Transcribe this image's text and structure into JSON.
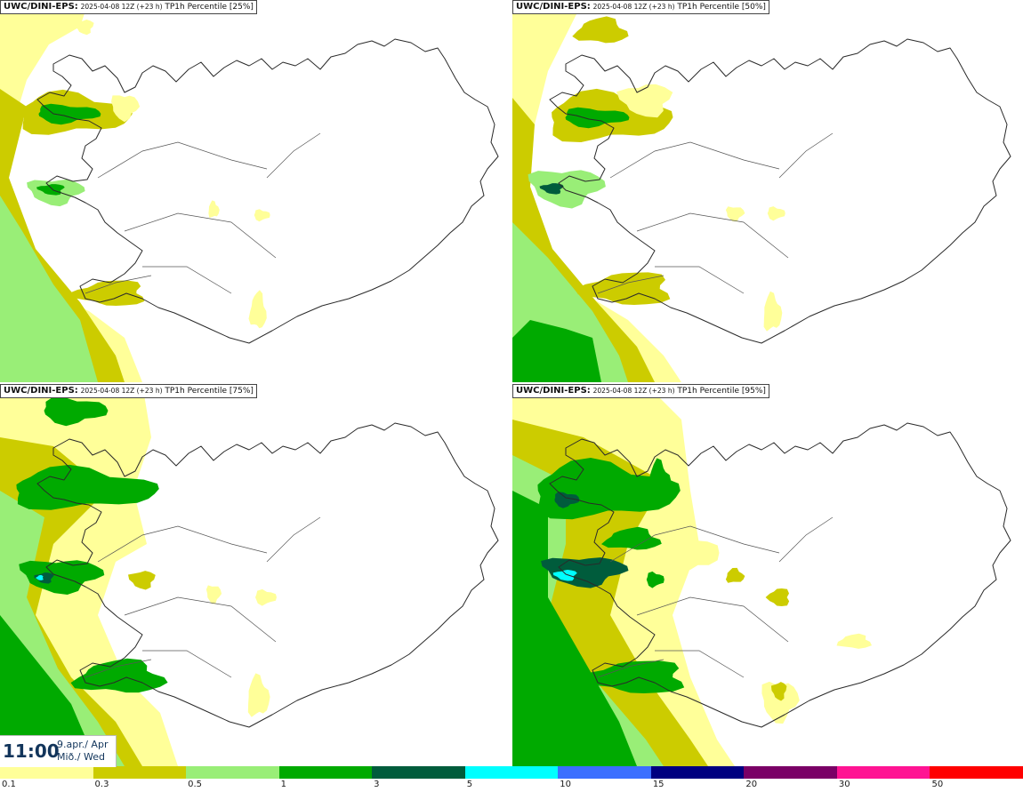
{
  "panels": [
    {
      "model": "UWC/DINI-EPS:",
      "run": "2025-04-08 12Z (+23 h)",
      "param": "TP1h Percentile [25%]"
    },
    {
      "model": "UWC/DINI-EPS:",
      "run": "2025-04-08 12Z (+23 h)",
      "param": "TP1h Percentile [50%]"
    },
    {
      "model": "UWC/DINI-EPS:",
      "run": "2025-04-08 12Z (+23 h)",
      "param": "TP1h Percentile [75%]"
    },
    {
      "model": "UWC/DINI-EPS:",
      "run": "2025-04-08 12Z (+23 h)",
      "param": "TP1h Percentile [95%]"
    }
  ],
  "valid_time": {
    "time": "11:00",
    "date_line1": "9.apr./ Apr",
    "date_line2": "Mið./ Wed"
  },
  "legend": {
    "colors": [
      "#ffff99",
      "#cccc00",
      "#99ee77",
      "#00aa00",
      "#005c3c",
      "#00ffff",
      "#3b6fff",
      "#000080",
      "#7a0066",
      "#ff1493",
      "#ff0000"
    ],
    "labels": [
      "0.1",
      "0.3",
      "0.5",
      "1",
      "3",
      "5",
      "10",
      "15",
      "20",
      "30",
      "50"
    ]
  }
}
